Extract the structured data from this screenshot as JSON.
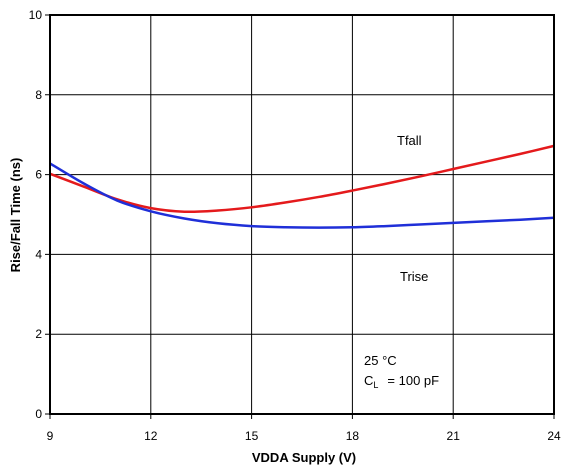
{
  "chart_data": {
    "type": "line",
    "xlabel": "VDDA Supply (V)",
    "ylabel": "Rise/Fall Time (ns)",
    "xlim": [
      9,
      24
    ],
    "ylim": [
      0,
      10
    ],
    "x_ticks": [
      "9",
      "12",
      "15",
      "18",
      "21",
      "24"
    ],
    "y_ticks": [
      "0",
      "2",
      "4",
      "6",
      "8",
      "10"
    ],
    "grid": true,
    "series": [
      {
        "name": "Tfall",
        "color": "#e41a1c",
        "x": [
          9,
          10,
          11,
          12,
          13,
          14,
          15,
          16,
          17,
          18,
          19,
          20,
          21,
          22,
          23,
          24
        ],
        "y": [
          6.02,
          5.7,
          5.38,
          5.16,
          5.07,
          5.1,
          5.18,
          5.3,
          5.44,
          5.6,
          5.77,
          5.95,
          6.14,
          6.33,
          6.52,
          6.72
        ]
      },
      {
        "name": "Trise",
        "color": "#1f2fd8",
        "x": [
          9,
          10,
          11,
          12,
          13,
          14,
          15,
          16,
          17,
          18,
          19,
          20,
          21,
          22,
          23,
          24
        ],
        "y": [
          6.28,
          5.78,
          5.35,
          5.08,
          4.9,
          4.78,
          4.71,
          4.68,
          4.67,
          4.68,
          4.71,
          4.75,
          4.79,
          4.83,
          4.87,
          4.92
        ]
      }
    ],
    "annotations": {
      "tfall_label": "Tfall",
      "trise_label": "Trise",
      "temperature": "25 °C",
      "cl_main": "C",
      "cl_sub": "L",
      "cl_value": "= 100 pF"
    }
  }
}
